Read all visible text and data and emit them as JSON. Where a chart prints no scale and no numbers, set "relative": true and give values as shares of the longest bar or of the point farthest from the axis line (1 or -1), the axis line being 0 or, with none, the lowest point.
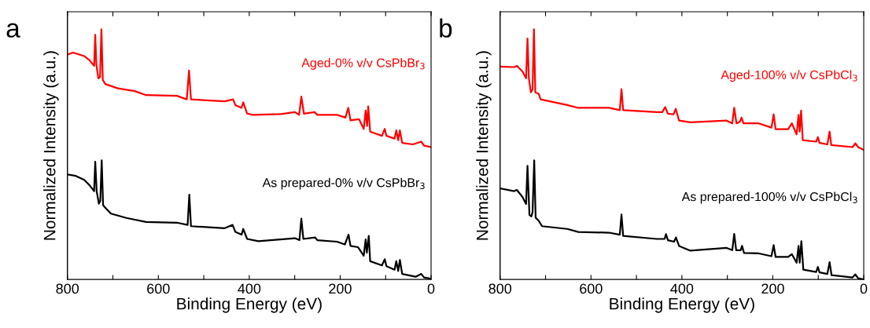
{
  "chart_data": [
    {
      "type": "line",
      "relative": true,
      "xlabel": "Binding Energy (eV)",
      "ylabel": "Normalized Intensity (a.u.)",
      "annotations": [
        "a"
      ],
      "xlim": [
        800,
        0
      ],
      "xticks": [
        800,
        {
          "value": 700,
          "label": null
        },
        600,
        {
          "value": 500,
          "label": null
        },
        400,
        {
          "value": 300,
          "label": null
        },
        200,
        {
          "value": 100,
          "label": null
        },
        0
      ],
      "tick_labels": "x",
      "grid": false,
      "legend": false,
      "series": [
        {
          "name": "Aged-0% v/v CsPbBr$_{3}$",
          "color": "#ff0000",
          "x": [
            800,
            787.6,
            763,
            751.8,
            741.3,
            738.8,
            736.4,
            732,
            728.3,
            725.2,
            722.2,
            716.6,
            688.8,
            651.7,
            627,
            559.1,
            537.4,
            532.5,
            528.2,
            454,
            435.5,
            430.5,
            417,
            413.3,
            404.6,
            392.3,
            330.5,
            299.6,
            290.3,
            285.4,
            279.8,
            256.3,
            250.2,
            207,
            188.4,
            182.2,
            177.3,
            158.7,
            148.2,
            143.9,
            140.8,
            138.3,
            134,
            108.1,
            101.9,
            98.2,
            80.3,
            76.6,
            72.3,
            68.6,
            63.6,
            40.1,
            21.6,
            15.4,
            0
          ],
          "values": [
            0.899,
            0.907,
            0.893,
            0.877,
            0.854,
            0.978,
            0.86,
            0.804,
            0.809,
            1.0,
            0.798,
            0.781,
            0.764,
            0.753,
            0.737,
            0.734,
            0.72,
            0.835,
            0.72,
            0.712,
            0.72,
            0.697,
            0.686,
            0.708,
            0.663,
            0.658,
            0.661,
            0.669,
            0.658,
            0.731,
            0.663,
            0.669,
            0.658,
            0.658,
            0.647,
            0.686,
            0.636,
            0.641,
            0.602,
            0.675,
            0.613,
            0.692,
            0.591,
            0.574,
            0.602,
            0.574,
            0.563,
            0.596,
            0.557,
            0.596,
            0.546,
            0.54,
            0.551,
            0.535,
            0.529
          ]
        },
        {
          "name": "As prepared-0% v/v CsPbBr$_{3}$",
          "color": "#000000",
          "x": [
            800,
            781.5,
            763,
            750.6,
            741.3,
            738.8,
            735.7,
            730.8,
            727.7,
            724.6,
            721.5,
            714.7,
            704.2,
            670.3,
            627,
            559.1,
            535.6,
            531.9,
            528.2,
            454,
            436.7,
            430.5,
            417,
            413.3,
            404.6,
            379.9,
            299.6,
            289.7,
            285.4,
            281,
            255.1,
            250.2,
            207,
            189.7,
            181.6,
            177.3,
            160.6,
            148.2,
            143.9,
            141.4,
            137.1,
            134,
            108.1,
            101.9,
            98.2,
            80.3,
            76.6,
            72.3,
            68.6,
            63.6,
            34,
            21.6,
            15.4,
            0
          ],
          "values": [
            0.42,
            0.414,
            0.398,
            0.375,
            0.353,
            0.471,
            0.353,
            0.303,
            0.314,
            0.476,
            0.297,
            0.283,
            0.263,
            0.246,
            0.23,
            0.227,
            0.218,
            0.339,
            0.213,
            0.205,
            0.218,
            0.19,
            0.179,
            0.202,
            0.162,
            0.153,
            0.165,
            0.157,
            0.243,
            0.162,
            0.168,
            0.157,
            0.151,
            0.14,
            0.179,
            0.134,
            0.129,
            0.095,
            0.16,
            0.107,
            0.174,
            0.073,
            0.056,
            0.081,
            0.053,
            0.039,
            0.073,
            0.034,
            0.078,
            0.022,
            0.011,
            0.022,
            0.008,
            0.003
          ]
        }
      ]
    },
    {
      "type": "line",
      "relative": true,
      "xlabel": "Binding Energy (eV)",
      "ylabel": "Normalized Intensity (a.u.)",
      "annotations": [
        "b"
      ],
      "xlim": [
        800,
        0
      ],
      "xticks": [
        800,
        {
          "value": 700,
          "label": null
        },
        600,
        {
          "value": 500,
          "label": null
        },
        400,
        {
          "value": 300,
          "label": null
        },
        200,
        {
          "value": 100,
          "label": null
        },
        0
      ],
      "tick_labels": "x",
      "grid": false,
      "legend": false,
      "series": [
        {
          "name": "Aged-100% v/v CsPbCl$_{3}$",
          "color": "#ff0000",
          "x": [
            800,
            769.2,
            763.1,
            750.8,
            742.8,
            739.7,
            736.6,
            732.3,
            728.6,
            725.5,
            722.5,
            715.1,
            710.8,
            652.3,
            627.7,
            560,
            536.6,
            532.9,
            529.2,
            455.4,
            443.1,
            436.9,
            430.8,
            418.5,
            413.5,
            406.2,
            381.5,
            301.5,
            289.2,
            284.9,
            280,
            272.6,
            268.9,
            264.6,
            230.8,
            203,
            198.2,
            193.8,
            166.2,
            158.1,
            147.7,
            143.4,
            140.9,
            137.8,
            134.1,
            104.6,
            100.9,
            97.2,
            80,
            75.1,
            71.4,
            24.6,
            18.5,
            12.3,
            0
          ],
          "values": [
            0.851,
            0.849,
            0.854,
            0.832,
            0.804,
            0.963,
            0.804,
            0.748,
            0.759,
            1.0,
            0.748,
            0.742,
            0.72,
            0.697,
            0.686,
            0.686,
            0.677,
            0.761,
            0.677,
            0.669,
            0.669,
            0.689,
            0.663,
            0.66,
            0.682,
            0.635,
            0.628,
            0.635,
            0.624,
            0.686,
            0.624,
            0.63,
            0.647,
            0.624,
            0.624,
            0.607,
            0.66,
            0.601,
            0.601,
            0.624,
            0.58,
            0.658,
            0.591,
            0.675,
            0.557,
            0.551,
            0.569,
            0.546,
            0.54,
            0.591,
            0.537,
            0.529,
            0.544,
            0.529,
            0.518
          ]
        },
        {
          "name": "As prepared-100% v/v CsPbCl$_{3}$",
          "color": "#000000",
          "x": [
            800,
            769.2,
            763.1,
            750.8,
            742.8,
            739.7,
            735.4,
            731.1,
            728.6,
            724.9,
            721.8,
            715.1,
            707.7,
            652.3,
            627.7,
            560,
            536.6,
            532.9,
            529.2,
            455.4,
            438.1,
            435.1,
            430.8,
            417.3,
            413.1,
            406.2,
            381.5,
            301.5,
            289.2,
            284.9,
            280.6,
            270.8,
            267.7,
            263.4,
            230.8,
            203,
            198.2,
            193.8,
            166.2,
            158.1,
            147.7,
            143.4,
            140.9,
            137.2,
            132.9,
            104.6,
            100.9,
            97.2,
            80,
            75.1,
            70.8,
            24.6,
            18.5,
            12.3,
            0
          ],
          "values": [
            0.364,
            0.353,
            0.358,
            0.33,
            0.302,
            0.454,
            0.258,
            0.252,
            0.269,
            0.476,
            0.247,
            0.235,
            0.213,
            0.202,
            0.19,
            0.187,
            0.179,
            0.26,
            0.174,
            0.162,
            0.162,
            0.181,
            0.157,
            0.151,
            0.168,
            0.134,
            0.115,
            0.126,
            0.117,
            0.182,
            0.117,
            0.117,
            0.134,
            0.106,
            0.104,
            0.093,
            0.137,
            0.09,
            0.09,
            0.101,
            0.067,
            0.134,
            0.067,
            0.153,
            0.039,
            0.03,
            0.05,
            0.028,
            0.022,
            0.069,
            0.017,
            0.008,
            0.02,
            0.005,
            0.0
          ]
        }
      ]
    }
  ]
}
